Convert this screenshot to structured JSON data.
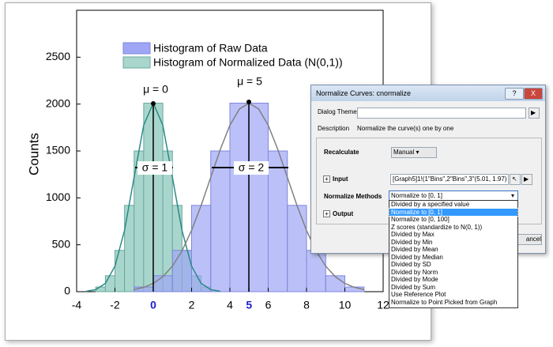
{
  "chart_data": {
    "type": "histogram",
    "ylabel": "Counts",
    "xlim": [
      -4,
      12
    ],
    "ylim": [
      0,
      3000
    ],
    "xticks": [
      -4,
      -2,
      0,
      2,
      4,
      5,
      6,
      8,
      10,
      12
    ],
    "xticks_highlight": [
      0,
      5
    ],
    "highlight_color": "#1c1ccc",
    "yticks": [
      0,
      500,
      1000,
      1500,
      2000,
      2500
    ],
    "series": [
      {
        "name": "Histogram of Normalized Data (N(0,1))",
        "color": "#a9d6cc",
        "edge": "#6aa8a0",
        "bins": [
          -3,
          -2.5,
          -2,
          -1.5,
          -1,
          -0.5,
          0,
          0.5,
          1,
          1.5,
          2,
          2.5,
          3
        ],
        "values": [
          50,
          170,
          440,
          920,
          1500,
          2010,
          2010,
          1500,
          920,
          440,
          170,
          50
        ]
      },
      {
        "name": "Histogram of Raw Data",
        "color": "#9ea6f5",
        "edge": "#7f86dd",
        "bins": [
          -1,
          0,
          1,
          2,
          3,
          4,
          5,
          6,
          7,
          8,
          9,
          10,
          11
        ],
        "values": [
          50,
          170,
          440,
          920,
          1500,
          2010,
          2010,
          1500,
          920,
          440,
          170,
          50
        ]
      }
    ],
    "lines": [
      {
        "color": "#2a8a86",
        "x": [
          -3.5,
          -3,
          -2.5,
          -2,
          -1.5,
          -1,
          -0.5,
          0,
          0.5,
          1,
          1.5,
          2,
          2.5,
          3,
          3.5
        ],
        "values": [
          4,
          22,
          88,
          272,
          653,
          1219,
          1774,
          2010,
          1774,
          1219,
          653,
          272,
          88,
          22,
          4
        ]
      },
      {
        "color": "#808080",
        "x": [
          -1,
          -0.5,
          0,
          0.5,
          1,
          1.5,
          2,
          2.5,
          3,
          3.5,
          4,
          4.5,
          5,
          5.5,
          6,
          6.5,
          7,
          7.5,
          8,
          8.5,
          9,
          9.5,
          10,
          10.5,
          11
        ],
        "values": [
          22,
          46,
          88,
          160,
          272,
          435,
          653,
          920,
          1219,
          1517,
          1774,
          1948,
          2010,
          1948,
          1774,
          1517,
          1219,
          920,
          653,
          435,
          272,
          160,
          88,
          46,
          22
        ]
      }
    ],
    "annotations": [
      "μ = 0",
      "μ = 5",
      "σ = 1",
      "σ = 2"
    ]
  },
  "dialog": {
    "title": "Normalize Curves: cnormalize",
    "help": "?",
    "close": "X",
    "theme_label": "Dialog Theme",
    "description_label": "Description",
    "description": "Normalize the curve(s) one by one",
    "recalculate_label": "Recalculate",
    "recalculate": "Manual",
    "input_label": "Input",
    "input": "[Graph5]1!(1\"Bins\",2\"Bins\",3\"(5.01, 1.97)",
    "methods_label": "Normalize Methods",
    "method": "Normalize to [0, 1]",
    "output_label": "Output",
    "cancel": "ancel",
    "options": [
      "Divided by a specified value",
      "Normalize to [0, 1]",
      "Normalize to [0, 100]",
      "Z scores (standardize to N(0, 1))",
      "Divided by Max",
      "Divided by Min",
      "Divided by Mean",
      "Divided by Median",
      "Divided by SD",
      "Divided by Norm",
      "Divided by Mode",
      "Divided by Sum",
      "Use Reference Plot",
      "Normalize to Point Picked from Graph"
    ],
    "selected": 1
  }
}
